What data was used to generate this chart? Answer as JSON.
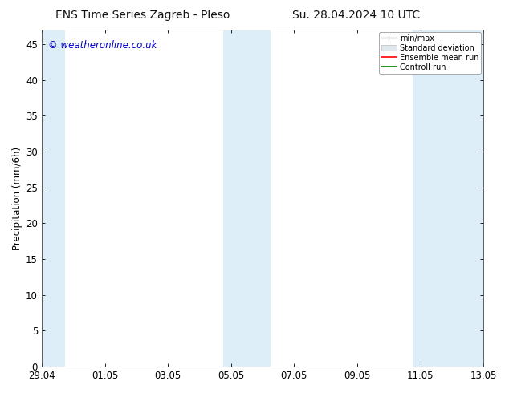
{
  "title_left": "ENS Time Series Zagreb - Pleso",
  "title_right": "Su. 28.04.2024 10 UTC",
  "ylabel": "Precipitation (mm/6h)",
  "watermark": "© weatheronline.co.uk",
  "background_color": "#ffffff",
  "plot_bg_color": "#ffffff",
  "ylim": [
    0,
    47
  ],
  "yticks": [
    0,
    5,
    10,
    15,
    20,
    25,
    30,
    35,
    40,
    45
  ],
  "x_start": 0,
  "x_end": 336,
  "xtick_labels": [
    "29.04",
    "01.05",
    "03.05",
    "05.05",
    "07.05",
    "09.05",
    "11.05",
    "13.05"
  ],
  "xtick_positions": [
    0,
    48,
    96,
    144,
    192,
    240,
    288,
    336
  ],
  "shaded_regions": [
    {
      "x_start": 0,
      "x_end": 18,
      "color": "#ddeef8"
    },
    {
      "x_start": 138,
      "x_end": 174,
      "color": "#ddeef8"
    },
    {
      "x_start": 282,
      "x_end": 318,
      "color": "#ddeef8"
    },
    {
      "x_start": 318,
      "x_end": 336,
      "color": "#ddeef8"
    }
  ],
  "legend_labels": [
    "min/max",
    "Standard deviation",
    "Ensemble mean run",
    "Controll run"
  ],
  "legend_line_colors": [
    "#aaaaaa",
    "#cccccc",
    "#ff0000",
    "#008000"
  ],
  "title_fontsize": 10,
  "label_fontsize": 8.5,
  "tick_fontsize": 8.5,
  "watermark_color": "#0000cc",
  "watermark_fontsize": 8.5
}
